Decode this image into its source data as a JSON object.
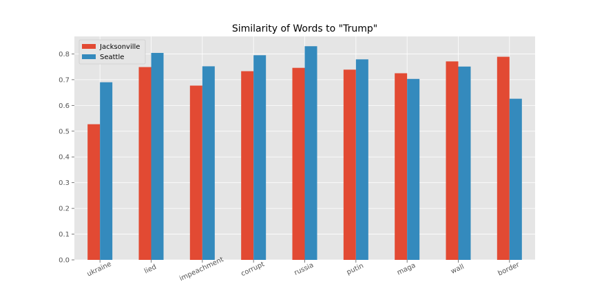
{
  "chart_data": {
    "type": "bar",
    "title": "Similarity of Words to \"Trump\"",
    "xlabel": "",
    "ylabel": "",
    "categories": [
      "ukraine",
      "lied",
      "impeachment",
      "corrupt",
      "russia",
      "putin",
      "maga",
      "wall",
      "border"
    ],
    "series": [
      {
        "name": "Jacksonville",
        "color": "#E24A33",
        "values": [
          0.527,
          0.749,
          0.677,
          0.733,
          0.746,
          0.739,
          0.725,
          0.771,
          0.789
        ]
      },
      {
        "name": "Seattle",
        "color": "#348ABD",
        "values": [
          0.69,
          0.804,
          0.752,
          0.795,
          0.83,
          0.779,
          0.703,
          0.751,
          0.626
        ]
      }
    ],
    "ylim": [
      0,
      0.868
    ],
    "yticks": [
      "0.0",
      "0.1",
      "0.2",
      "0.3",
      "0.4",
      "0.5",
      "0.6",
      "0.7",
      "0.8"
    ],
    "grid": true,
    "legend_position": "top-left",
    "background_color": "#E5E5E5",
    "grid_color": "#FFFFFF"
  }
}
